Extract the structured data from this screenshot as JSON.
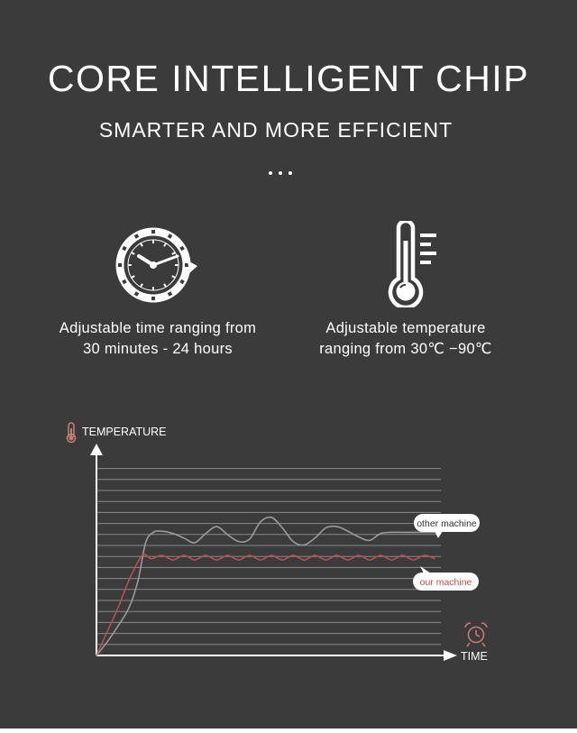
{
  "header": {
    "title": "CORE INTELLIGENT CHIP",
    "subtitle": "SMARTER AND MORE EFFICIENT"
  },
  "features": [
    {
      "icon": "clock-icon",
      "line1": "Adjustable time ranging from",
      "line2": "30 minutes - 24 hours"
    },
    {
      "icon": "thermometer-icon",
      "line1": "Adjustable temperature",
      "line2": "ranging from 30℃  −90℃"
    }
  ],
  "colors": {
    "background": "#3b3b3c",
    "our_machine": "#c0504f",
    "other_machine": "#9a9a9a",
    "text": "#ffffff",
    "accent_icon": "#c87b74"
  },
  "chart_data": {
    "type": "line",
    "title": "",
    "xlabel": "TIME",
    "ylabel": "TEMPERATURE",
    "x_ticks": false,
    "y_ticks": false,
    "grid": true,
    "ylim": [
      0,
      17
    ],
    "xlim": [
      0,
      33
    ],
    "series": [
      {
        "name": "other machine",
        "x": [
          0,
          1,
          2,
          3,
          3.8,
          4.5,
          5.2,
          6,
          7,
          8,
          9,
          10,
          11,
          12,
          13,
          14,
          15,
          16,
          17,
          18,
          19,
          20,
          21,
          22,
          23,
          24,
          25,
          26,
          27,
          28,
          29,
          30,
          31
        ],
        "values": [
          0,
          1.2,
          2.6,
          4.2,
          6.5,
          9.8,
          10.7,
          10.8,
          10.6,
          10.2,
          9.8,
          10.6,
          11.2,
          10.5,
          9.9,
          10.1,
          11.6,
          12.0,
          11.1,
          9.9,
          9.6,
          10.2,
          11.1,
          11.2,
          10.8,
          10.3,
          10.0,
          10.6,
          10.7,
          10.7,
          10.7,
          10.7,
          10.7
        ]
      },
      {
        "name": "our machine",
        "x": [
          0,
          1,
          2,
          3,
          4.2,
          5,
          6,
          7,
          8,
          9,
          10,
          11,
          12,
          13,
          14,
          15,
          16,
          17,
          18,
          19,
          20,
          21,
          22,
          23,
          24,
          25,
          26,
          27,
          28,
          29,
          30,
          31
        ],
        "values": [
          0,
          2.1,
          4.2,
          6.6,
          8.7,
          8.4,
          8.7,
          8.3,
          8.7,
          8.3,
          8.7,
          8.3,
          8.7,
          8.3,
          8.7,
          8.3,
          8.7,
          8.3,
          8.7,
          8.3,
          8.7,
          8.3,
          8.7,
          8.3,
          8.7,
          8.3,
          8.7,
          8.3,
          8.7,
          8.3,
          8.7,
          8.4
        ]
      }
    ],
    "annotations": [
      "other machine",
      "our machine"
    ]
  }
}
